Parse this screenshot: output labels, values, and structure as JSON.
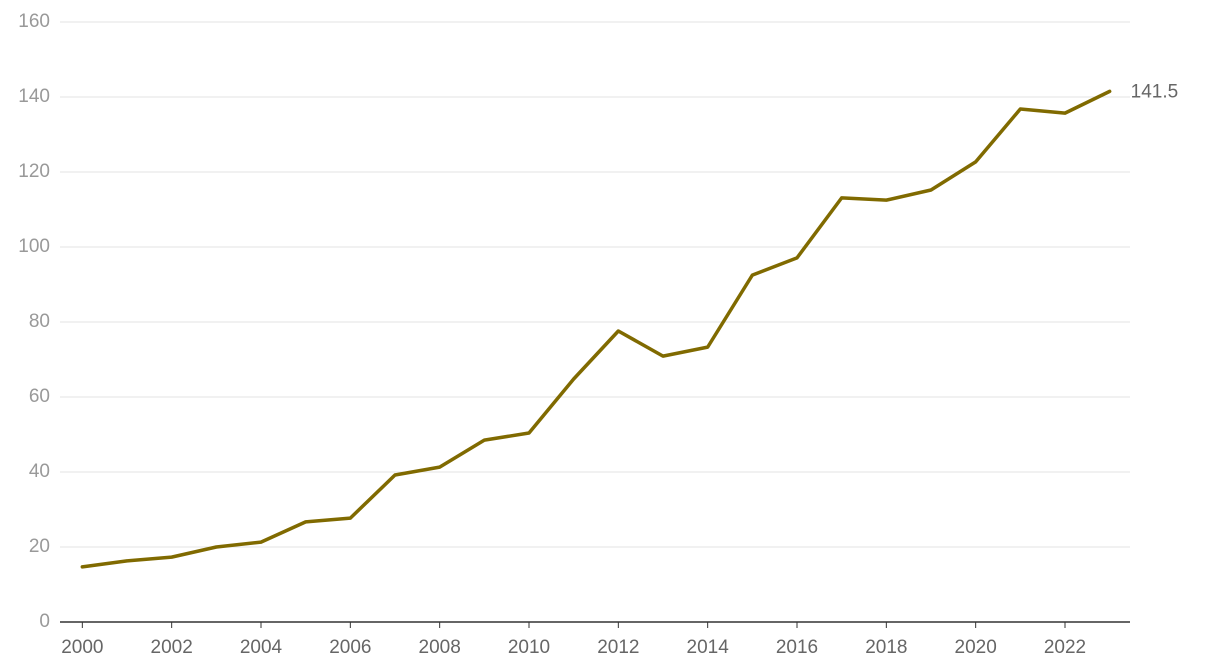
{
  "chart_data": {
    "type": "line",
    "x": [
      2000,
      2001,
      2002,
      2003,
      2004,
      2005,
      2006,
      2007,
      2008,
      2009,
      2010,
      2011,
      2012,
      2013,
      2014,
      2015,
      2016,
      2017,
      2018,
      2019,
      2020,
      2021,
      2022,
      2023
    ],
    "series": [
      {
        "color": "#806a00",
        "values": [
          14.7,
          16.3,
          17.3,
          20.0,
          21.3,
          26.7,
          27.7,
          39.2,
          41.3,
          48.5,
          50.4,
          64.8,
          77.6,
          70.9,
          73.3,
          92.5,
          97.1,
          113.1,
          112.5,
          115.2,
          122.7,
          136.8,
          135.7,
          141.5
        ]
      }
    ],
    "xlim": [
      1999.5,
      2023.5
    ],
    "xticks": [
      2000,
      2002,
      2004,
      2006,
      2008,
      2010,
      2012,
      2014,
      2016,
      2018,
      2020,
      2022
    ],
    "ylim": [
      0,
      160
    ],
    "yticks": [
      0,
      20,
      40,
      60,
      80,
      100,
      120,
      140,
      160
    ],
    "grid": true,
    "end_label": true
  }
}
